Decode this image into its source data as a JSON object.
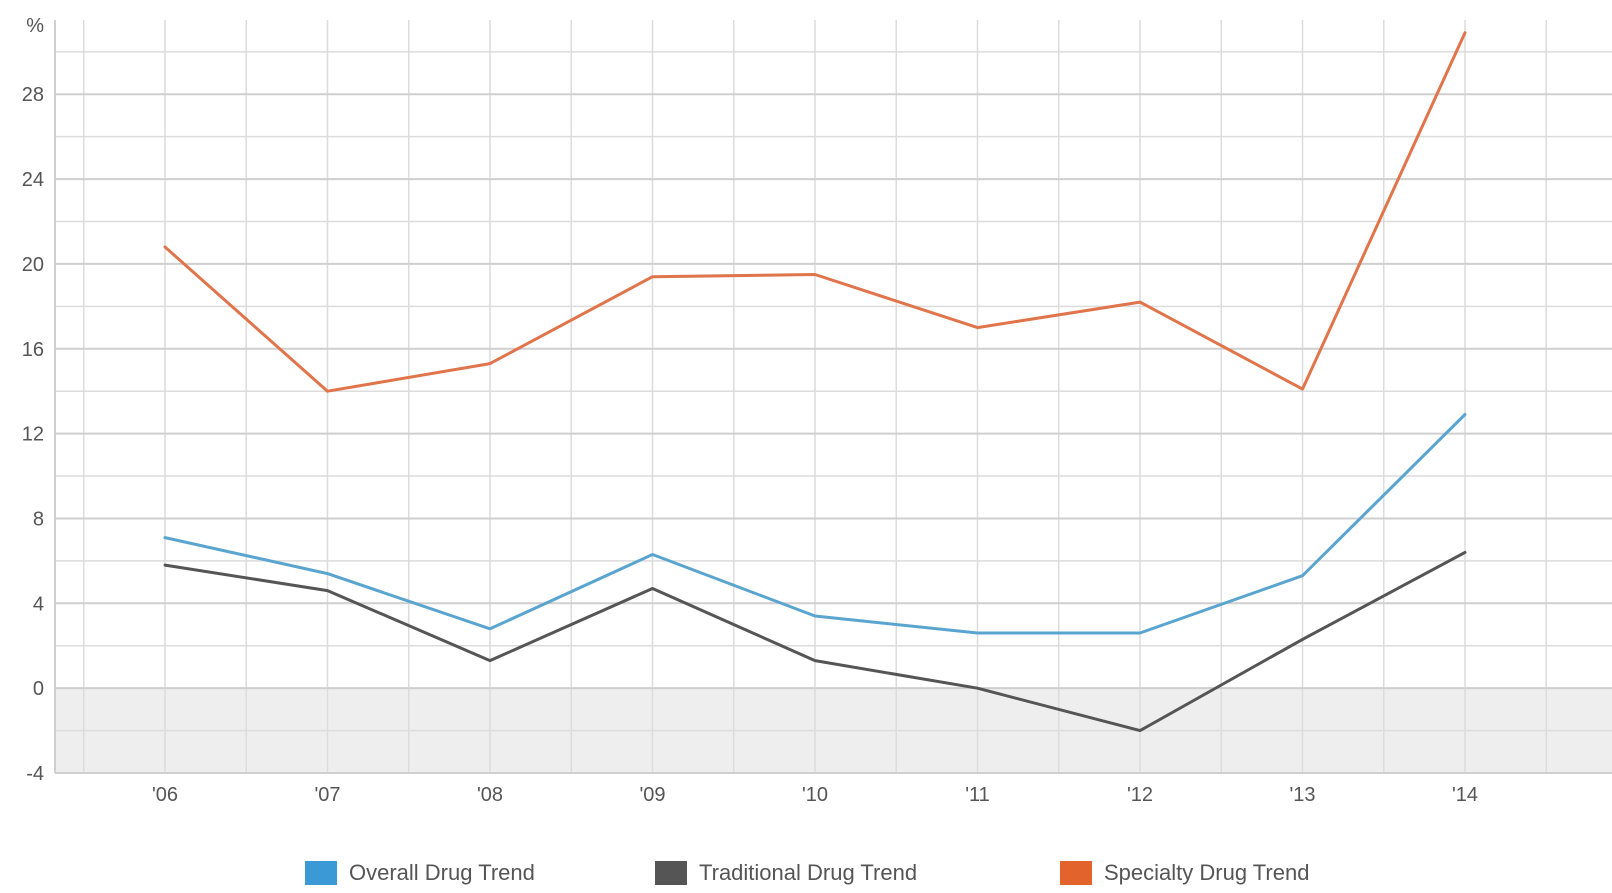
{
  "chart_data": {
    "type": "line",
    "unit_label": "%",
    "categories": [
      "'06",
      "'07",
      "'08",
      "'09",
      "'10",
      "'11",
      "'12",
      "'13",
      "'14"
    ],
    "y_ticks": [
      28,
      24,
      20,
      16,
      12,
      8,
      4,
      0,
      -4
    ],
    "ylim": [
      -4,
      31.5
    ],
    "grid": true,
    "shaded_band": [
      -4,
      0
    ],
    "legend_position": "bottom-center",
    "series": [
      {
        "name": "Overall Drug Trend",
        "color": "#5aa5cf",
        "values": [
          7.1,
          5.4,
          2.8,
          6.3,
          3.4,
          2.6,
          2.6,
          5.3,
          12.9
        ]
      },
      {
        "name": "Traditional Drug Trend",
        "color": "#555555",
        "values": [
          5.8,
          4.6,
          1.3,
          4.7,
          1.3,
          0.0,
          -2.0,
          2.3,
          6.4
        ]
      },
      {
        "name": "Specialty Drug Trend",
        "color": "#e0744a",
        "values": [
          20.8,
          14.0,
          15.3,
          19.4,
          19.5,
          17.0,
          18.2,
          14.1,
          30.9
        ]
      }
    ]
  },
  "legend_colors": {
    "overall": "#3b9ad6",
    "traditional": "#555555",
    "specialty": "#e3632d"
  }
}
